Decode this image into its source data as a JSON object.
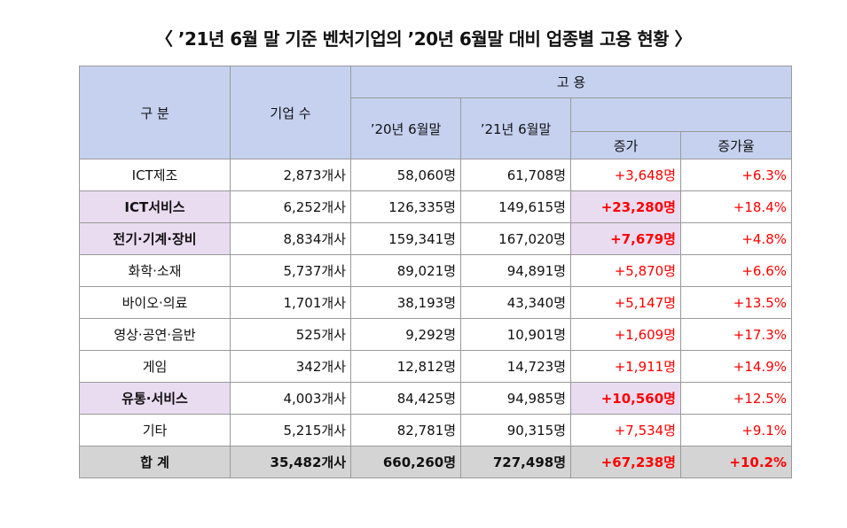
{
  "title": "〈 ’21년 6월 말 기준 벤처기업의 ’20년 6월말 대비 업종별 고용 현황 〉",
  "headers": {
    "category": "구 분",
    "companies": "기업 수",
    "employment": "고 용",
    "jun20": "’20년 6월말",
    "jun21": "’21년 6월말",
    "increase": "증가",
    "rate": "증가율"
  },
  "rows": [
    {
      "category": "ICT제조",
      "companies": "2,873개사",
      "jun20": "58,060명",
      "jun21": "61,708명",
      "increase": "+3,648명",
      "rate": "+6.3%",
      "highlight": false
    },
    {
      "category": "ICT서비스",
      "companies": "6,252개사",
      "jun20": "126,335명",
      "jun21": "149,615명",
      "increase": "+23,280명",
      "rate": "+18.4%",
      "highlight": true
    },
    {
      "category": "전기·기계·장비",
      "companies": "8,834개사",
      "jun20": "159,341명",
      "jun21": "167,020명",
      "increase": "+7,679명",
      "rate": "+4.8%",
      "highlight": true
    },
    {
      "category": "화학·소재",
      "companies": "5,737개사",
      "jun20": "89,021명",
      "jun21": "94,891명",
      "increase": "+5,870명",
      "rate": "+6.6%",
      "highlight": false
    },
    {
      "category": "바이오·의료",
      "companies": "1,701개사",
      "jun20": "38,193명",
      "jun21": "43,340명",
      "increase": "+5,147명",
      "rate": "+13.5%",
      "highlight": false
    },
    {
      "category": "영상·공연·음반",
      "companies": "525개사",
      "jun20": "9,292명",
      "jun21": "10,901명",
      "increase": "+1,609명",
      "rate": "+17.3%",
      "highlight": false
    },
    {
      "category": "게임",
      "companies": "342개사",
      "jun20": "12,812명",
      "jun21": "14,723명",
      "increase": "+1,911명",
      "rate": "+14.9%",
      "highlight": false
    },
    {
      "category": "유통·서비스",
      "companies": "4,003개사",
      "jun20": "84,425명",
      "jun21": "94,985명",
      "increase": "+10,560명",
      "rate": "+12.5%",
      "highlight": true
    },
    {
      "category": "기타",
      "companies": "5,215개사",
      "jun20": "82,781명",
      "jun21": "90,315명",
      "increase": "+7,534명",
      "rate": "+9.1%",
      "highlight": false
    }
  ],
  "total": {
    "category": "합 계",
    "companies": "35,482개사",
    "jun20": "660,260명",
    "jun21": "727,498명",
    "increase": "+67,238명",
    "rate": "+10.2%"
  },
  "colors": {
    "header_bg": "#c5d1ef",
    "highlight_bg": "#e9dcf1",
    "total_bg": "#d4d4d4",
    "positive": "#ff0000"
  }
}
